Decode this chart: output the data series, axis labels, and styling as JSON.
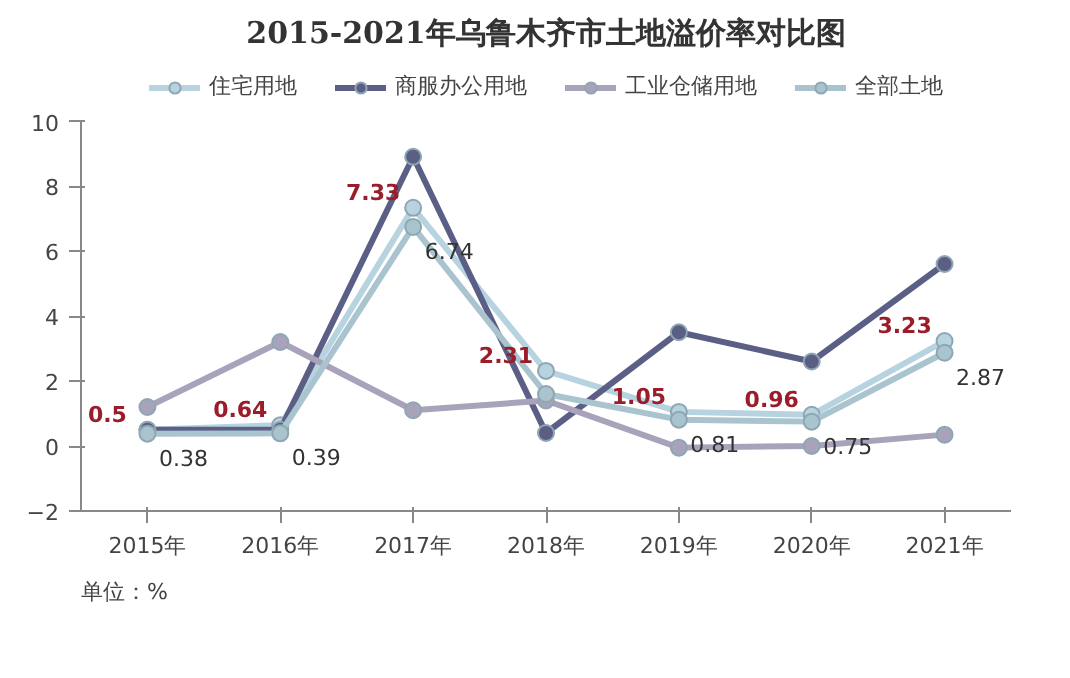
{
  "chart_data": {
    "type": "line",
    "title": "2015-2021年乌鲁木齐市土地溢价率对比图",
    "categories": [
      "2015年",
      "2016年",
      "2017年",
      "2018年",
      "2019年",
      "2020年",
      "2021年"
    ],
    "series": [
      {
        "name": "住宅用地",
        "color": "#b7d3e0",
        "values": [
          0.5,
          0.64,
          7.33,
          2.31,
          1.05,
          0.96,
          3.23
        ],
        "value_labels": [
          "0.5",
          "0.64",
          "7.33",
          "2.31",
          "1.05",
          "0.96",
          "3.23"
        ]
      },
      {
        "name": "商服办公用地",
        "color": "#5b5f85",
        "values": [
          0.5,
          0.5,
          8.9,
          0.4,
          3.5,
          2.6,
          5.6
        ]
      },
      {
        "name": "工业仓储用地",
        "color": "#a8a3bb",
        "values": [
          1.2,
          3.2,
          1.1,
          1.4,
          -0.05,
          0.0,
          0.35
        ]
      },
      {
        "name": "全部土地",
        "color": "#a9c4cf",
        "values": [
          0.38,
          0.39,
          6.74,
          1.6,
          0.81,
          0.75,
          2.87
        ],
        "value_labels": [
          "0.38",
          "0.39",
          "6.74",
          null,
          "0.81",
          "0.75",
          "2.87"
        ]
      }
    ],
    "ylim": [
      -2,
      10
    ],
    "yticks": [
      -2,
      0,
      2,
      4,
      6,
      8,
      10
    ],
    "grid": false,
    "legend": "top",
    "marker": "circle",
    "line_style": "solid",
    "annotations": [
      "单位：%"
    ]
  }
}
